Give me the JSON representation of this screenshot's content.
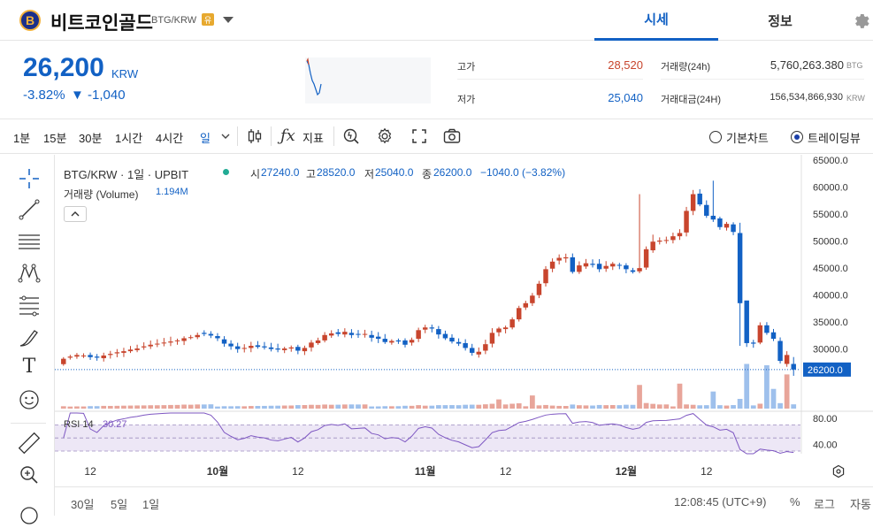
{
  "header": {
    "coin_logo_letter": "B",
    "coin_name": "비트코인골드",
    "pair": "BTG/KRW",
    "warning_badge": "유",
    "tabs": [
      "시세",
      "정보"
    ]
  },
  "summary": {
    "price": "26,200",
    "unit": "KRW",
    "change_rate": "-3.82%",
    "change_amount": "▼ -1,040",
    "high_label": "고가",
    "high_value": "28,520",
    "low_label": "저가",
    "low_value": "25,040",
    "volume_label": "거래량(24h)",
    "volume_value": "5,760,263.380",
    "volume_unit": "BTG",
    "amount_label": "거래대금(24H)",
    "amount_value": "156,534,866,930",
    "amount_unit": "KRW"
  },
  "toolbar": {
    "timeframes": [
      "1분",
      "15분",
      "30분",
      "1시간",
      "4시간",
      "일"
    ],
    "indicators_label": "지표",
    "basic_chart_label": "기본차트",
    "trading_view_label": "트레이딩뷰"
  },
  "legend": {
    "title": "BTG/KRW · 1일 · UPBIT",
    "open_label": "시",
    "open": "27240.0",
    "high_label": "고",
    "high": "28520.0",
    "low_label": "저",
    "low": "25040.0",
    "close_label": "종",
    "close": "26200.0",
    "change": "−1040.0 (−3.82%)",
    "volume_label": "거래량 (Volume)",
    "volume": "1.194M",
    "rsi_label": "RSI 14",
    "rsi_value": "30.27"
  },
  "bottom_bar": {
    "ranges": [
      "30일",
      "5일",
      "1일"
    ],
    "time": "12:08:45 (UTC+9)",
    "percent_label": "%",
    "log_label": "로그",
    "auto_label": "자동"
  },
  "colors": {
    "up": "#c8452d",
    "down": "#1261c4",
    "accent": "#1261c4",
    "rsi_line": "#7e57c2",
    "rsi_band": "#ede7f6"
  },
  "chart_data": {
    "type": "candlestick",
    "price_axis_ticks": [
      "65000.0",
      "60000.0",
      "55000.0",
      "50000.0",
      "45000.0",
      "40000.0",
      "35000.0",
      "30000.0"
    ],
    "last_price_label": "26200.0",
    "last_price": 26200,
    "ylim": [
      18800,
      66000
    ],
    "rsi_ticks": [
      "80.00",
      "40.00"
    ],
    "rsi_ylim": [
      26,
      88
    ],
    "x_tick_labels": [
      {
        "i": 4,
        "label": "12"
      },
      {
        "i": 23,
        "label": "10월"
      },
      {
        "i": 35,
        "label": "12"
      },
      {
        "i": 54,
        "label": "11월"
      },
      {
        "i": 66,
        "label": "12"
      },
      {
        "i": 84,
        "label": "12월"
      },
      {
        "i": 96,
        "label": "12"
      }
    ],
    "volume_max": 3500000,
    "candles": []
  }
}
